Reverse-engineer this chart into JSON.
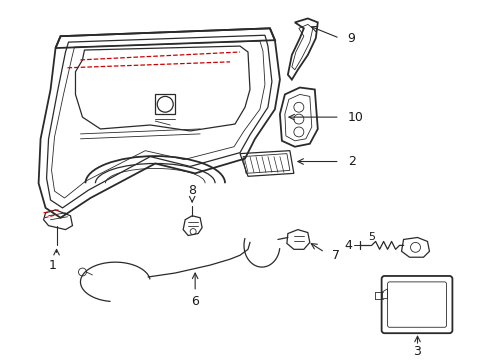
{
  "background_color": "#ffffff",
  "line_color": "#2a2a2a",
  "red_color": "#cc0000",
  "label_color": "#1a1a1a",
  "figsize": [
    4.89,
    3.6
  ],
  "dpi": 100,
  "label_fontsize": 9
}
